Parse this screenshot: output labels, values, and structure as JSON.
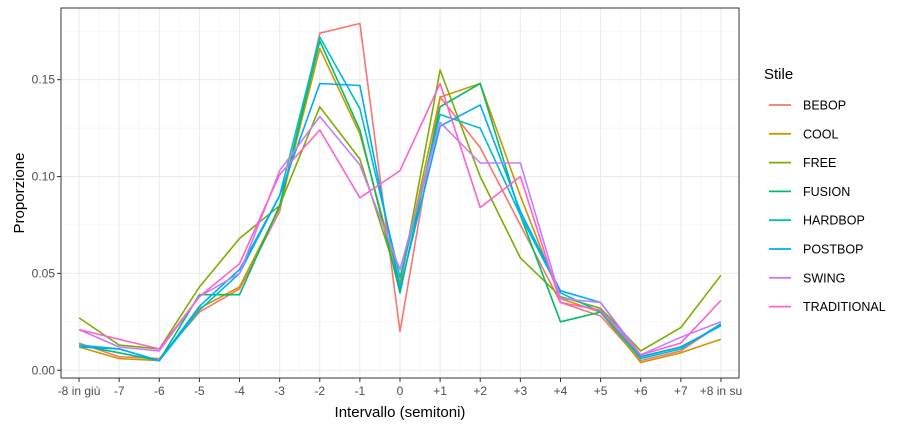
{
  "chart_data": {
    "type": "line",
    "title": "",
    "xlabel": "Intervallo (semitoni)",
    "ylabel": "Proporzione",
    "x_categories": [
      "-8 in giù",
      "-7",
      "-6",
      "-5",
      "-4",
      "-3",
      "-2",
      "-1",
      "0",
      "+1",
      "+2",
      "+3",
      "+4",
      "+5",
      "+6",
      "+7",
      "+8 in su"
    ],
    "x_values": [
      -8,
      -7,
      -6,
      -5,
      -4,
      -3,
      -2,
      -1,
      0,
      1,
      2,
      3,
      4,
      5,
      6,
      7,
      8
    ],
    "xlim": [
      -8.45,
      8.45
    ],
    "y_ticks": [
      0.0,
      0.05,
      0.1,
      0.15
    ],
    "y_tick_labels": [
      "0.00",
      "0.05",
      "0.10",
      "0.15"
    ],
    "ylim": [
      -0.004,
      0.187
    ],
    "grid": true,
    "legend_title": "Stile",
    "legend_position": "right",
    "series": [
      {
        "name": "BEBOP",
        "color": "#F8766D",
        "values": [
          0.014,
          0.007,
          0.006,
          0.03,
          0.042,
          0.082,
          0.174,
          0.179,
          0.02,
          0.141,
          0.115,
          0.075,
          0.035,
          0.028,
          0.005,
          0.01,
          0.024
        ]
      },
      {
        "name": "COOL",
        "color": "#CD9600",
        "values": [
          0.012,
          0.006,
          0.005,
          0.032,
          0.043,
          0.084,
          0.166,
          0.122,
          0.045,
          0.141,
          0.148,
          0.09,
          0.037,
          0.03,
          0.004,
          0.009,
          0.016
        ]
      },
      {
        "name": "FREE",
        "color": "#7CAE00",
        "values": [
          0.027,
          0.013,
          0.011,
          0.043,
          0.068,
          0.085,
          0.136,
          0.109,
          0.044,
          0.155,
          0.1,
          0.058,
          0.038,
          0.032,
          0.01,
          0.022,
          0.049
        ]
      },
      {
        "name": "FUSION",
        "color": "#00BE67",
        "values": [
          0.013,
          0.009,
          0.005,
          0.039,
          0.039,
          0.085,
          0.17,
          0.124,
          0.04,
          0.136,
          0.148,
          0.08,
          0.025,
          0.03,
          0.007,
          0.012,
          0.023
        ]
      },
      {
        "name": "HARDBOP",
        "color": "#00BFC4",
        "values": [
          0.013,
          0.011,
          0.005,
          0.031,
          0.05,
          0.09,
          0.172,
          0.135,
          0.048,
          0.132,
          0.125,
          0.08,
          0.04,
          0.03,
          0.006,
          0.011,
          0.024
        ]
      },
      {
        "name": "POSTBOP",
        "color": "#00A9FF",
        "values": [
          0.012,
          0.011,
          0.005,
          0.033,
          0.052,
          0.09,
          0.148,
          0.147,
          0.042,
          0.126,
          0.137,
          0.082,
          0.041,
          0.035,
          0.007,
          0.012,
          0.023
        ]
      },
      {
        "name": "SWING",
        "color": "#C77CFF",
        "values": [
          0.021,
          0.012,
          0.01,
          0.038,
          0.05,
          0.103,
          0.131,
          0.106,
          0.052,
          0.128,
          0.107,
          0.107,
          0.037,
          0.035,
          0.008,
          0.017,
          0.025
        ]
      },
      {
        "name": "TRADITIONAL",
        "color": "#FF61CC",
        "values": [
          0.021,
          0.016,
          0.011,
          0.038,
          0.055,
          0.101,
          0.124,
          0.089,
          0.103,
          0.148,
          0.084,
          0.1,
          0.035,
          0.031,
          0.008,
          0.014,
          0.036
        ]
      }
    ]
  }
}
